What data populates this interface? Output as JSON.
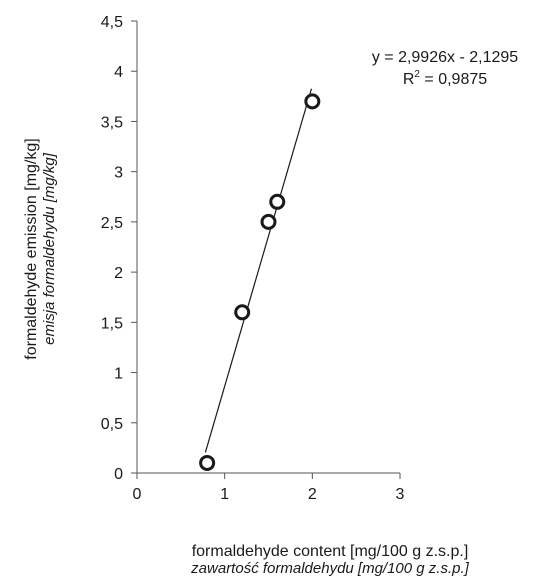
{
  "chart_data": {
    "type": "scatter",
    "title": "",
    "xlabel": "formaldehyde content [mg/100 g z.s.p.]",
    "xlabel_secondary": "zawartość formaldehydu [mg/100 g z.s.p.]",
    "ylabel": "formaldehyde emission [mg/kg]",
    "ylabel_secondary": "emisja formaldehydu [mg/kg]",
    "xlim": [
      0,
      3
    ],
    "ylim": [
      0,
      4.5
    ],
    "x_ticks": [
      0,
      1,
      2,
      3
    ],
    "x_tick_labels": [
      "0",
      "1",
      "2",
      "3"
    ],
    "y_ticks": [
      0,
      0.5,
      1,
      1.5,
      2,
      2.5,
      3,
      3.5,
      4,
      4.5
    ],
    "y_tick_labels": [
      "0",
      "0,5",
      "1",
      "1,5",
      "2",
      "2,5",
      "3",
      "3,5",
      "4",
      "4,5"
    ],
    "grid": false,
    "legend": "none",
    "series": [
      {
        "x": [
          0.8,
          1.2,
          1.5,
          1.6,
          2.0
        ],
        "y": [
          0.1,
          1.6,
          2.5,
          2.7,
          3.7
        ]
      }
    ],
    "trendline": {
      "slope": 2.9926,
      "intercept": -2.1295,
      "x_range": [
        0.78,
        1.99
      ],
      "equation_label": "y = 2,9926x - 2,1295",
      "r2_label_prefix": "R",
      "r2_label_exponent": "2",
      "r2_label_value": " = 0,9875"
    },
    "colors": {
      "marker_stroke": "#1a1a1a",
      "line": "#1a1a1a",
      "axis": "#555555"
    }
  }
}
